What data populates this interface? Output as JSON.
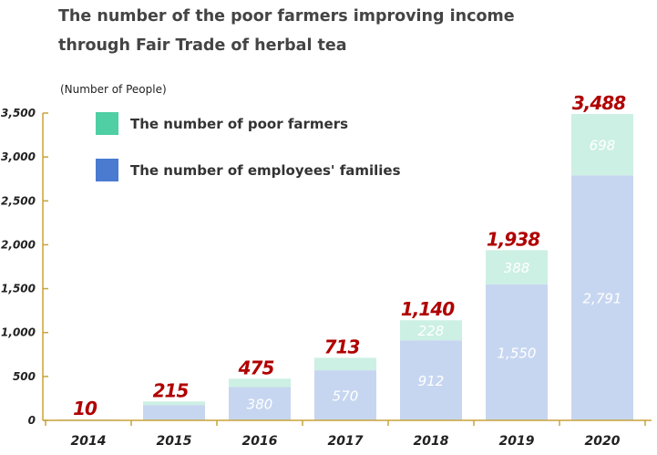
{
  "page": {
    "title_line1": "The number of the poor farmers improving income",
    "title_line2": "through Fair Trade of herbal tea"
  },
  "colors": {
    "axis": "#c8a43a",
    "series_farmers": "#ccf0e3",
    "series_families": "#c7d6f0",
    "legend_farmers": "#4fcfa3",
    "legend_families": "#4a7bd1",
    "total_label": "#b00000"
  },
  "chart_data": {
    "type": "bar",
    "stacked": true,
    "title": "The number of the poor farmers improving income through Fair Trade of herbal tea",
    "ylabel": "(Number of People)",
    "xlabel": "",
    "ylim": [
      0,
      3500
    ],
    "yticks": [
      0,
      500,
      1000,
      1500,
      2000,
      2500,
      3000,
      3500
    ],
    "ytick_labels": [
      "0",
      "500",
      "1,000",
      "1,500",
      "2,000",
      "2,500",
      "3,000",
      "3,500"
    ],
    "categories": [
      "2014",
      "2015",
      "2016",
      "2017",
      "2018",
      "2019",
      "2020"
    ],
    "series": [
      {
        "name": "The number of employees' families",
        "values": [
          10,
          175,
          380,
          570,
          912,
          1550,
          2791
        ],
        "value_labels": [
          "",
          "",
          "380",
          "570",
          "912",
          "1,550",
          "2,791"
        ]
      },
      {
        "name": "The number of poor farmers",
        "values": [
          0,
          40,
          95,
          143,
          228,
          388,
          698
        ],
        "value_labels": [
          "",
          "",
          "",
          "",
          "228",
          "388",
          "698"
        ]
      }
    ],
    "totals": [
      10,
      215,
      475,
      713,
      1140,
      1938,
      3488
    ],
    "total_labels": [
      "10",
      "215",
      "475",
      "713",
      "1,140",
      "1,938",
      "3,488"
    ],
    "legend": {
      "placement": "top-left",
      "order": [
        "The number of poor farmers",
        "The number of employees' families"
      ]
    },
    "grid": false
  }
}
